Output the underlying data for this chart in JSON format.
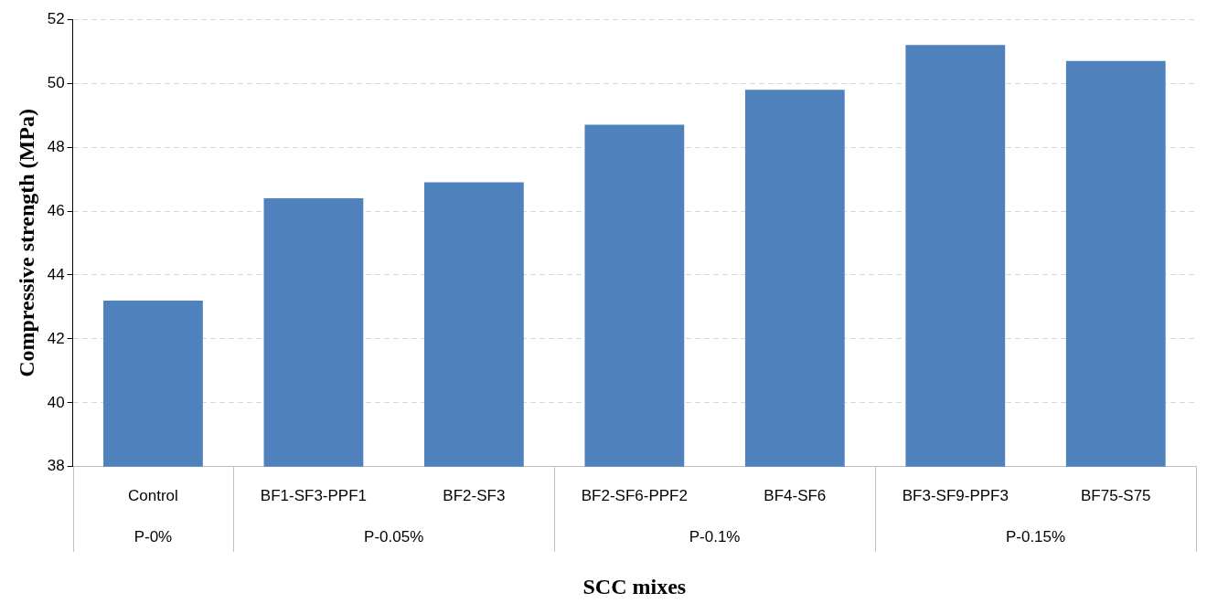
{
  "chart_data": {
    "type": "bar",
    "xlabel": "SCC mixes",
    "ylabel": "Compressive strength (MPa)",
    "categories": [
      "Control",
      "BF1-SF3-PPF1",
      "BF2-SF3",
      "BF2-SF6-PPF2",
      "BF4-SF6",
      "BF3-SF9-PPF3",
      "BF75-S75"
    ],
    "values": [
      43.2,
      46.4,
      46.9,
      48.7,
      49.8,
      51.2,
      50.7
    ],
    "color": "#4f81bd",
    "ylim": [
      38,
      52
    ],
    "yticks": [
      38,
      40,
      42,
      44,
      46,
      48,
      50,
      52
    ],
    "grid": "y",
    "legend": false,
    "annotations": [
      "P-0%",
      "P-0.05%",
      "P-0.1%",
      "P-0.15%"
    ]
  }
}
